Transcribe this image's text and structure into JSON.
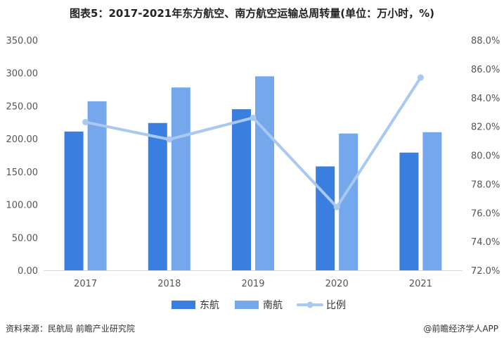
{
  "title": "图表5：2017-2021年东方航空、南方航空运输总周转量(单位：万小时，%)",
  "source": "资料来源：民航局 前瞻产业研究院",
  "brand": "@前瞻经济学人APP",
  "chart_data": {
    "type": "bar",
    "categories": [
      "2017",
      "2018",
      "2019",
      "2020",
      "2021"
    ],
    "series": [
      {
        "name": "东航",
        "kind": "bar",
        "axis": "left",
        "values": [
          211,
          224,
          245,
          158,
          179
        ],
        "color": "#3a7fe0"
      },
      {
        "name": "南航",
        "kind": "bar",
        "axis": "left",
        "values": [
          257,
          278,
          295,
          208,
          210
        ],
        "color": "#74a7ec"
      },
      {
        "name": "比例",
        "kind": "line",
        "axis": "right",
        "values": [
          82.3,
          81.1,
          82.6,
          76.4,
          85.4
        ],
        "color": "#a9c8f2"
      }
    ],
    "y_left": {
      "min": 0,
      "max": 350,
      "step": 50,
      "ticks": [
        "0.00",
        "50.00",
        "100.00",
        "150.00",
        "200.00",
        "250.00",
        "300.00",
        "350.00"
      ]
    },
    "y_right": {
      "min": 72,
      "max": 88,
      "step": 2,
      "ticks": [
        "72.0%",
        "74.0%",
        "76.0%",
        "78.0%",
        "80.0%",
        "82.0%",
        "84.0%",
        "86.0%",
        "88.0%"
      ]
    },
    "legend_position": "bottom",
    "grid": false
  }
}
